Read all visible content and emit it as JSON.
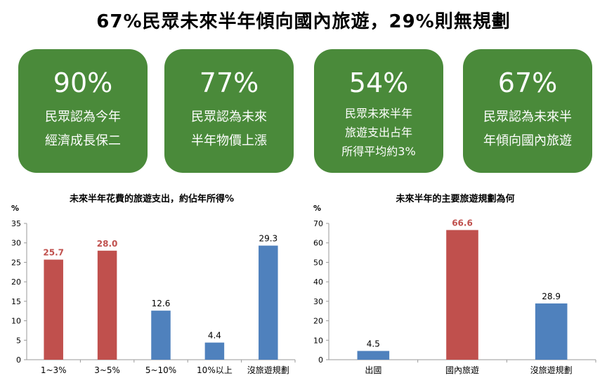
{
  "headline": "67%民眾未來半年傾向國內旅遊，29%則無規劃",
  "cards": [
    {
      "value": "90%",
      "lines": [
        "民眾認為今年",
        "經濟成長保二"
      ]
    },
    {
      "value": "77%",
      "lines": [
        "民眾認為未來",
        "半年物價上漲"
      ]
    },
    {
      "value": "54%",
      "lines": [
        "民眾未來半年",
        "旅遊支出占年",
        "所得平均約3%"
      ]
    },
    {
      "value": "67%",
      "lines": [
        "民眾認為未來半",
        "年傾向國內旅遊"
      ]
    }
  ],
  "colors": {
    "card": "#4a8a3a",
    "red": "#c0504d",
    "blue": "#4f81bd",
    "red_label": "#c0504d"
  },
  "chart_data": [
    {
      "type": "bar",
      "title": "未來半年花費的旅遊支出，約佔年所得%",
      "ylabel": "%",
      "ylim": [
        0,
        35
      ],
      "yticks": [
        0,
        5,
        10,
        15,
        20,
        25,
        30,
        35
      ],
      "categories": [
        "1~3%",
        "3~5%",
        "5~10%",
        "10%以上",
        "沒旅遊規劃"
      ],
      "values": [
        25.7,
        28.0,
        12.6,
        4.4,
        29.3
      ],
      "value_labels": [
        "25.7",
        "28.0",
        "12.6",
        "4.4",
        "29.3"
      ],
      "bar_colors": [
        "red",
        "red",
        "blue",
        "blue",
        "blue"
      ],
      "grid": false
    },
    {
      "type": "bar",
      "title": "未來半年的主要旅遊規劃為何",
      "ylabel": "%",
      "ylim": [
        0,
        70
      ],
      "yticks": [
        0,
        10,
        20,
        30,
        40,
        50,
        60,
        70
      ],
      "categories": [
        "出國",
        "國內旅遊",
        "沒旅遊規劃"
      ],
      "values": [
        4.5,
        66.6,
        28.9
      ],
      "value_labels": [
        "4.5",
        "66.6",
        "28.9"
      ],
      "bar_colors": [
        "blue",
        "red",
        "blue"
      ],
      "grid": false
    }
  ]
}
